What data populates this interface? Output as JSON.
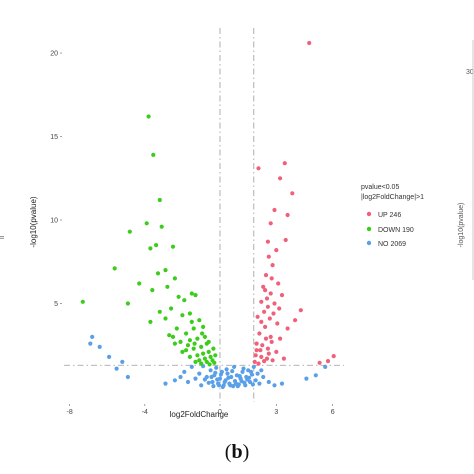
{
  "panel_label": {
    "open": "(",
    "letter": "b",
    "close": ")"
  },
  "right_fragment": {
    "axis_title": "-log10(pvalue)",
    "tick_top": "30"
  },
  "left_fragment": {
    "text": "ll"
  },
  "chart_data": {
    "type": "scatter",
    "title": "",
    "xlabel": "log2FoldChange",
    "ylabel": "-log10(pvalue)",
    "xlim": [
      -8.3,
      6.6
    ],
    "ylim": [
      -0.9,
      21.5
    ],
    "xticks": [
      -8,
      -4,
      0,
      3,
      6
    ],
    "yticks": [
      5,
      10,
      15,
      20
    ],
    "grid": false,
    "thresholds": {
      "vlines": [
        0,
        1.8
      ],
      "hline": 1.3
    },
    "legend": {
      "title_lines": [
        "pvalue<0.05",
        "|log2FoldChange|>1"
      ],
      "placement": "right",
      "items": [
        {
          "label": "UP 246",
          "color": "#f0607a"
        },
        {
          "label": "DOWN 190",
          "color": "#3ccc1c"
        },
        {
          "label": "NO 2069",
          "color": "#5aa0e8"
        }
      ]
    },
    "series": [
      {
        "key": "UP",
        "color": "#f0607a",
        "points": [
          [
            4.75,
            20.6
          ],
          [
            3.45,
            13.4
          ],
          [
            3.2,
            12.5
          ],
          [
            3.85,
            11.6
          ],
          [
            2.05,
            13.1
          ],
          [
            3.6,
            10.3
          ],
          [
            2.9,
            10.6
          ],
          [
            2.7,
            9.8
          ],
          [
            2.55,
            8.7
          ],
          [
            3.0,
            8.2
          ],
          [
            2.8,
            7.3
          ],
          [
            3.5,
            8.8
          ],
          [
            2.6,
            7.8
          ],
          [
            2.45,
            6.7
          ],
          [
            2.75,
            6.5
          ],
          [
            2.3,
            6.0
          ],
          [
            3.1,
            6.2
          ],
          [
            2.2,
            5.1
          ],
          [
            2.5,
            5.3
          ],
          [
            2.9,
            5.0
          ],
          [
            3.3,
            5.5
          ],
          [
            2.0,
            4.2
          ],
          [
            2.35,
            4.5
          ],
          [
            2.65,
            4.1
          ],
          [
            3.6,
            3.5
          ],
          [
            2.1,
            3.2
          ],
          [
            2.4,
            3.6
          ],
          [
            2.7,
            3.0
          ],
          [
            3.2,
            2.9
          ],
          [
            1.95,
            2.6
          ],
          [
            2.25,
            2.5
          ],
          [
            2.55,
            2.3
          ],
          [
            3.0,
            2.1
          ],
          [
            1.9,
            1.9
          ],
          [
            2.2,
            1.8
          ],
          [
            2.5,
            1.7
          ],
          [
            2.8,
            1.6
          ],
          [
            3.4,
            1.7
          ],
          [
            1.85,
            1.5
          ],
          [
            2.05,
            1.4
          ],
          [
            4.3,
            4.6
          ],
          [
            4.0,
            4.0
          ],
          [
            5.75,
            1.55
          ],
          [
            6.05,
            1.85
          ],
          [
            5.3,
            1.45
          ],
          [
            2.15,
            2.2
          ],
          [
            2.45,
            2.9
          ],
          [
            2.6,
            2.0
          ],
          [
            2.35,
            1.55
          ],
          [
            1.95,
            2.2
          ],
          [
            2.75,
            2.7
          ],
          [
            3.05,
            3.8
          ],
          [
            2.2,
            3.9
          ],
          [
            2.55,
            4.8
          ],
          [
            2.85,
            4.4
          ],
          [
            2.4,
            5.8
          ],
          [
            2.7,
            5.6
          ],
          [
            3.15,
            4.7
          ]
        ]
      },
      {
        "key": "DOWN",
        "color": "#3ccc1c",
        "points": [
          [
            -3.8,
            16.2
          ],
          [
            -3.55,
            13.9
          ],
          [
            -3.2,
            11.2
          ],
          [
            -3.9,
            9.8
          ],
          [
            -3.1,
            9.6
          ],
          [
            -4.8,
            9.3
          ],
          [
            -3.4,
            8.5
          ],
          [
            -2.5,
            8.4
          ],
          [
            -3.7,
            8.3
          ],
          [
            -5.6,
            7.1
          ],
          [
            -2.9,
            7.0
          ],
          [
            -3.3,
            6.8
          ],
          [
            -2.4,
            6.5
          ],
          [
            -4.3,
            6.2
          ],
          [
            -2.8,
            6.0
          ],
          [
            -3.6,
            5.8
          ],
          [
            -1.5,
            5.6
          ],
          [
            -2.2,
            5.4
          ],
          [
            -7.3,
            5.1
          ],
          [
            -4.9,
            5.0
          ],
          [
            -1.9,
            5.2
          ],
          [
            -1.3,
            5.5
          ],
          [
            -2.6,
            4.7
          ],
          [
            -3.2,
            4.5
          ],
          [
            -1.6,
            4.4
          ],
          [
            -2.0,
            4.3
          ],
          [
            -1.1,
            4.0
          ],
          [
            -2.9,
            4.1
          ],
          [
            -3.7,
            3.9
          ],
          [
            -0.9,
            3.6
          ],
          [
            -1.4,
            3.5
          ],
          [
            -2.3,
            3.5
          ],
          [
            -1.8,
            3.2
          ],
          [
            -2.7,
            3.1
          ],
          [
            -0.8,
            3.0
          ],
          [
            -1.2,
            2.9
          ],
          [
            -1.6,
            2.8
          ],
          [
            -2.1,
            2.7
          ],
          [
            -0.7,
            2.6
          ],
          [
            -1.0,
            2.4
          ],
          [
            -1.4,
            2.3
          ],
          [
            -1.8,
            2.2
          ],
          [
            -0.6,
            2.1
          ],
          [
            -0.9,
            2.0
          ],
          [
            -1.2,
            1.9
          ],
          [
            -0.5,
            1.8
          ],
          [
            -0.8,
            1.7
          ],
          [
            -1.1,
            1.6
          ],
          [
            -0.4,
            1.6
          ],
          [
            -0.7,
            1.5
          ],
          [
            -1.0,
            1.4
          ],
          [
            -0.3,
            1.45
          ],
          [
            -0.55,
            1.35
          ],
          [
            -1.3,
            1.5
          ],
          [
            -1.6,
            1.8
          ],
          [
            -2.0,
            2.1
          ],
          [
            -2.4,
            2.6
          ],
          [
            -0.35,
            2.3
          ],
          [
            -0.6,
            2.7
          ],
          [
            -0.25,
            1.9
          ],
          [
            -1.5,
            3.9
          ],
          [
            -2.5,
            3.0
          ],
          [
            -1.7,
            2.5
          ],
          [
            -0.95,
            3.2
          ],
          [
            -1.35,
            2.6
          ]
        ]
      },
      {
        "key": "NO",
        "color": "#5aa0e8",
        "points": [
          [
            -6.8,
            3.0
          ],
          [
            -6.4,
            2.4
          ],
          [
            -5.9,
            1.8
          ],
          [
            -5.5,
            1.1
          ],
          [
            -4.9,
            0.6
          ],
          [
            -6.9,
            2.6
          ],
          [
            -5.2,
            1.5
          ],
          [
            5.6,
            1.2
          ],
          [
            5.1,
            0.7
          ],
          [
            4.6,
            0.5
          ],
          [
            -2.9,
            0.2
          ],
          [
            -2.4,
            0.4
          ],
          [
            -1.9,
            0.9
          ],
          [
            -1.5,
            1.2
          ],
          [
            -1.1,
            0.8
          ],
          [
            -0.9,
            1.25
          ],
          [
            -0.7,
            0.6
          ],
          [
            -0.5,
            1.0
          ],
          [
            -0.4,
            0.3
          ],
          [
            -0.3,
            0.7
          ],
          [
            -0.2,
            1.15
          ],
          [
            -0.1,
            0.2
          ],
          [
            0.0,
            0.5
          ],
          [
            0.1,
            0.9
          ],
          [
            0.2,
            0.1
          ],
          [
            0.3,
            0.4
          ],
          [
            0.4,
            0.8
          ],
          [
            0.5,
            0.2
          ],
          [
            0.6,
            0.6
          ],
          [
            0.7,
            0.05
          ],
          [
            0.8,
            0.35
          ],
          [
            0.9,
            0.7
          ],
          [
            1.0,
            0.15
          ],
          [
            1.1,
            0.5
          ],
          [
            1.2,
            0.9
          ],
          [
            1.3,
            0.25
          ],
          [
            1.4,
            0.6
          ],
          [
            1.5,
            1.0
          ],
          [
            1.6,
            0.3
          ],
          [
            1.7,
            0.75
          ],
          [
            1.8,
            1.2
          ],
          [
            1.9,
            0.4
          ],
          [
            2.0,
            0.8
          ],
          [
            2.1,
            0.2
          ],
          [
            2.3,
            0.6
          ],
          [
            2.6,
            0.3
          ],
          [
            2.9,
            0.1
          ],
          [
            3.3,
            0.2
          ],
          [
            -0.35,
            0.05
          ],
          [
            -0.15,
            0.45
          ],
          [
            0.05,
            0.75
          ],
          [
            0.25,
            0.3
          ],
          [
            0.45,
            0.55
          ],
          [
            0.65,
            0.95
          ],
          [
            0.85,
            0.2
          ],
          [
            1.05,
            0.65
          ],
          [
            1.25,
            1.1
          ],
          [
            1.45,
            0.45
          ],
          [
            1.65,
            0.9
          ],
          [
            -0.6,
            0.25
          ],
          [
            -0.8,
            0.45
          ],
          [
            -1.3,
            0.5
          ],
          [
            -1.7,
            0.3
          ],
          [
            -2.1,
            0.6
          ],
          [
            0.15,
            0.0
          ],
          [
            0.55,
            0.1
          ],
          [
            0.95,
            0.05
          ],
          [
            1.35,
            0.1
          ],
          [
            -0.05,
            0.1
          ],
          [
            0.35,
            1.05
          ],
          [
            0.75,
            1.2
          ],
          [
            1.15,
            0.35
          ],
          [
            -0.25,
            0.85
          ],
          [
            1.55,
            0.55
          ],
          [
            1.75,
            0.15
          ],
          [
            2.2,
            1.0
          ],
          [
            -1.0,
            0.1
          ],
          [
            -0.45,
            0.6
          ]
        ]
      }
    ]
  }
}
